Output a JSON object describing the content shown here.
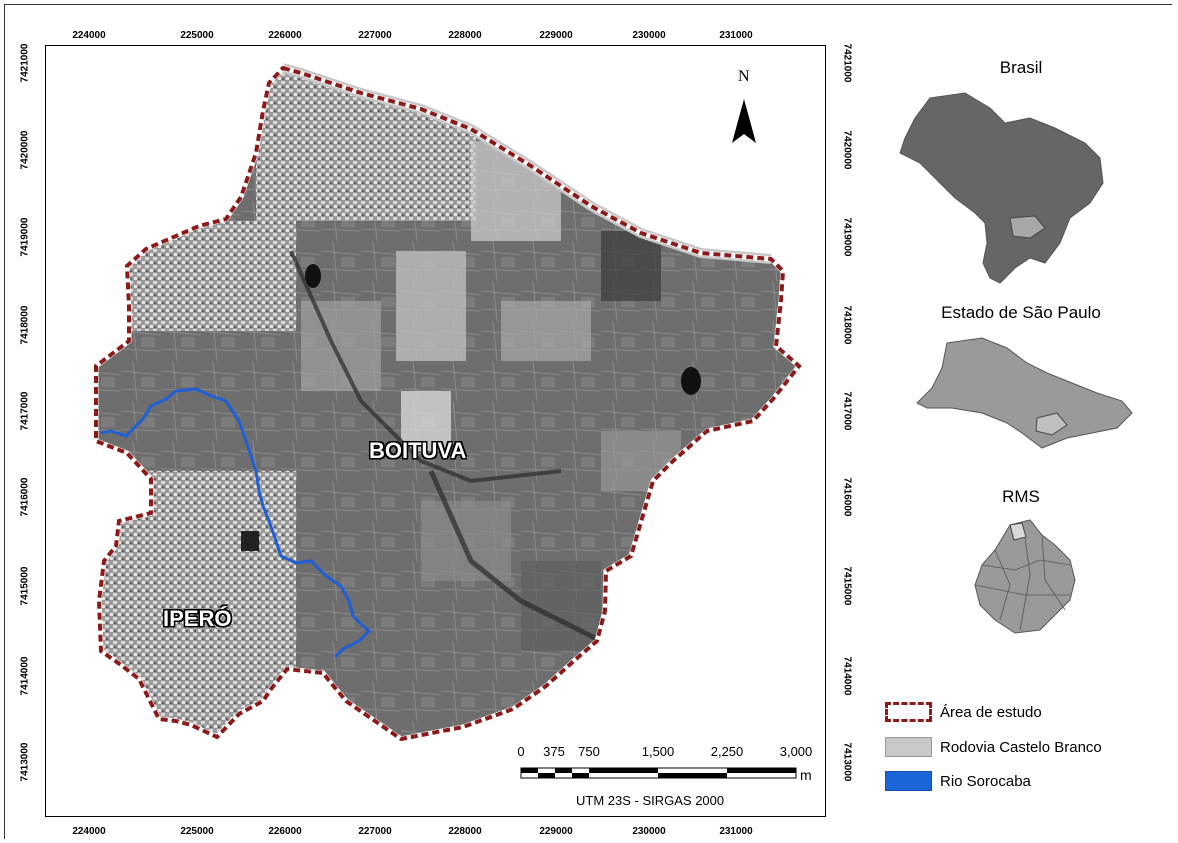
{
  "map": {
    "x_ticks": [
      "224000",
      "225000",
      "226000",
      "227000",
      "228000",
      "229000",
      "230000",
      "231000"
    ],
    "y_ticks": [
      "7421000",
      "7420000",
      "7419000",
      "7418000",
      "7417000",
      "7416000",
      "7415000",
      "7414000",
      "7413000"
    ],
    "labels": {
      "boituva": "BOITUVA",
      "ipero": "IPERÓ"
    },
    "north": "N",
    "scale": {
      "values": [
        "0",
        "375",
        "750",
        "1,500",
        "2,250",
        "3,000"
      ],
      "unit": "m",
      "projection": "UTM 23S - SIRGAS 2000"
    },
    "colors": {
      "boundary": "#8b1a1a",
      "road": "#c8c8c8",
      "river": "#1f5fd6"
    }
  },
  "insets": {
    "brasil": "Brasil",
    "sp": "Estado de São Paulo",
    "rms": "RMS"
  },
  "legend": {
    "items": [
      {
        "label": "Área de estudo",
        "type": "boundary",
        "color": "#8b1a1a"
      },
      {
        "label": "Rodovia Castelo Branco",
        "type": "fill",
        "color": "#c8c8c8"
      },
      {
        "label": "Rio Sorocaba",
        "type": "fill",
        "color": "#1a66d9"
      }
    ]
  }
}
